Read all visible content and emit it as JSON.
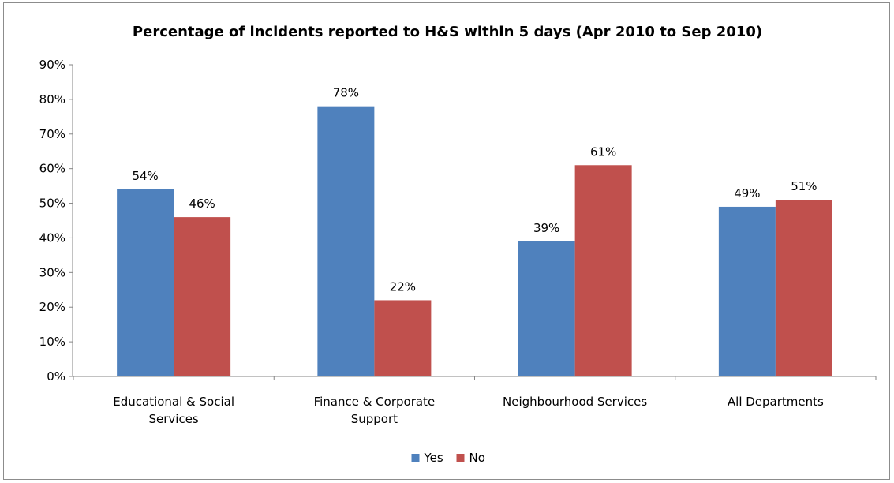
{
  "chart_data": {
    "type": "bar",
    "title": "Percentage of incidents reported to H&S within 5 days (Apr 2010 to Sep 2010)",
    "xlabel": "",
    "ylabel": "",
    "ylim": [
      0,
      90
    ],
    "yticks": [
      0,
      10,
      20,
      30,
      40,
      50,
      60,
      70,
      80,
      90
    ],
    "ytick_labels": [
      "0%",
      "10%",
      "20%",
      "30%",
      "40%",
      "50%",
      "60%",
      "70%",
      "80%",
      "90%"
    ],
    "grid": false,
    "legend": "bottom",
    "categories": [
      [
        "Educational & Social",
        "Services"
      ],
      [
        "Finance & Corporate",
        "Support"
      ],
      [
        "Neighbourhood Services"
      ],
      [
        "All Departments"
      ]
    ],
    "series": [
      {
        "name": "Yes",
        "color": "#4f81bd",
        "values": [
          54,
          78,
          39,
          49
        ],
        "labels": [
          "54%",
          "78%",
          "39%",
          "49%"
        ]
      },
      {
        "name": "No",
        "color": "#c0504d",
        "values": [
          46,
          22,
          61,
          51
        ],
        "labels": [
          "46%",
          "22%",
          "61%",
          "51%"
        ]
      }
    ]
  }
}
